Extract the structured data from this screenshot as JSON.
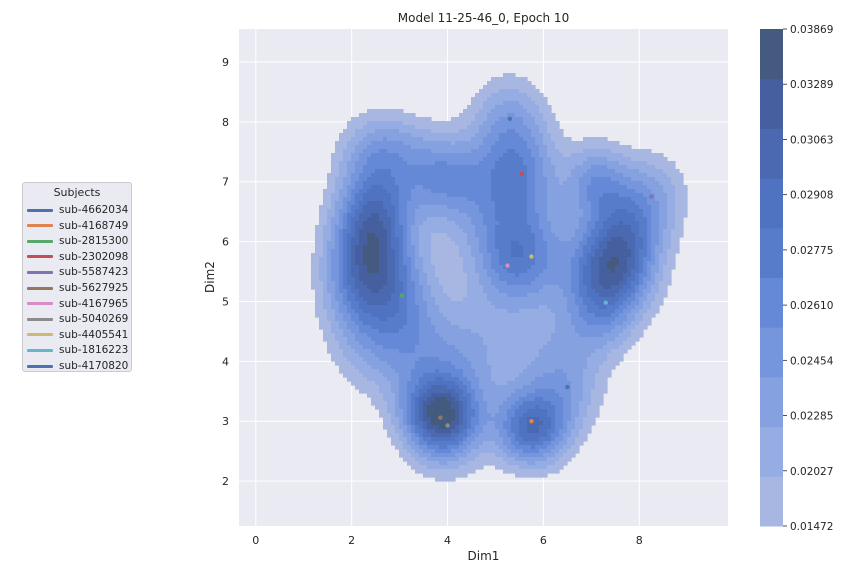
{
  "chart_data": {
    "type": "kde-contour",
    "title": "Model 11-25-46_0, Epoch 10",
    "xlabel": "Dim1",
    "ylabel": "Dim2",
    "xlim": [
      -0.35,
      9.85
    ],
    "ylim": [
      1.25,
      9.55
    ],
    "xticks": [
      0,
      2,
      4,
      6,
      8
    ],
    "yticks": [
      2,
      3,
      4,
      5,
      6,
      7,
      8,
      9
    ],
    "grid": true,
    "colorbar": {
      "ticks": [
        "0.01472",
        "0.02027",
        "0.02285",
        "0.02454",
        "0.02610",
        "0.02775",
        "0.02908",
        "0.03063",
        "0.03289",
        "0.03869"
      ],
      "colors": [
        "#a7b7e1",
        "#96ade3",
        "#85a1e0",
        "#7596dc",
        "#6589d6",
        "#577cca",
        "#4f73c0",
        "#4a69b0",
        "#465f9e",
        "#445a7e"
      ]
    },
    "legend": {
      "title": "Subjects",
      "position": "left",
      "entries": [
        {
          "label": "sub-4662034",
          "color": "#4c72b0"
        },
        {
          "label": "sub-4168749",
          "color": "#dd8452"
        },
        {
          "label": "sub-2815300",
          "color": "#55a868"
        },
        {
          "label": "sub-2302098",
          "color": "#c44e52"
        },
        {
          "label": "sub-5587423",
          "color": "#8172b3"
        },
        {
          "label": "sub-5627925",
          "color": "#937860"
        },
        {
          "label": "sub-4167965",
          "color": "#da8bc3"
        },
        {
          "label": "sub-5040269",
          "color": "#8c8c8c"
        },
        {
          "label": "sub-4405541",
          "color": "#ccb974"
        },
        {
          "label": "sub-1816223",
          "color": "#64b5cd"
        },
        {
          "label": "sub-4170820",
          "color": "#4c72b0"
        }
      ]
    },
    "points": [
      {
        "subject": "sub-4662034",
        "x": 5.3,
        "y": 8.05
      },
      {
        "subject": "sub-4168749",
        "x": 5.75,
        "y": 3.0
      },
      {
        "subject": "sub-2815300",
        "x": 3.05,
        "y": 5.1
      },
      {
        "subject": "sub-2302098",
        "x": 5.55,
        "y": 7.13
      },
      {
        "subject": "sub-5587423",
        "x": 8.25,
        "y": 6.75
      },
      {
        "subject": "sub-5627925",
        "x": 3.85,
        "y": 3.06
      },
      {
        "subject": "sub-4167965",
        "x": 5.25,
        "y": 5.6
      },
      {
        "subject": "sub-5040269",
        "x": 4.0,
        "y": 2.93
      },
      {
        "subject": "sub-4405541",
        "x": 5.75,
        "y": 5.75
      },
      {
        "subject": "sub-1816223",
        "x": 7.3,
        "y": 4.98
      },
      {
        "subject": "sub-4170820",
        "x": 6.5,
        "y": 3.57
      }
    ]
  }
}
